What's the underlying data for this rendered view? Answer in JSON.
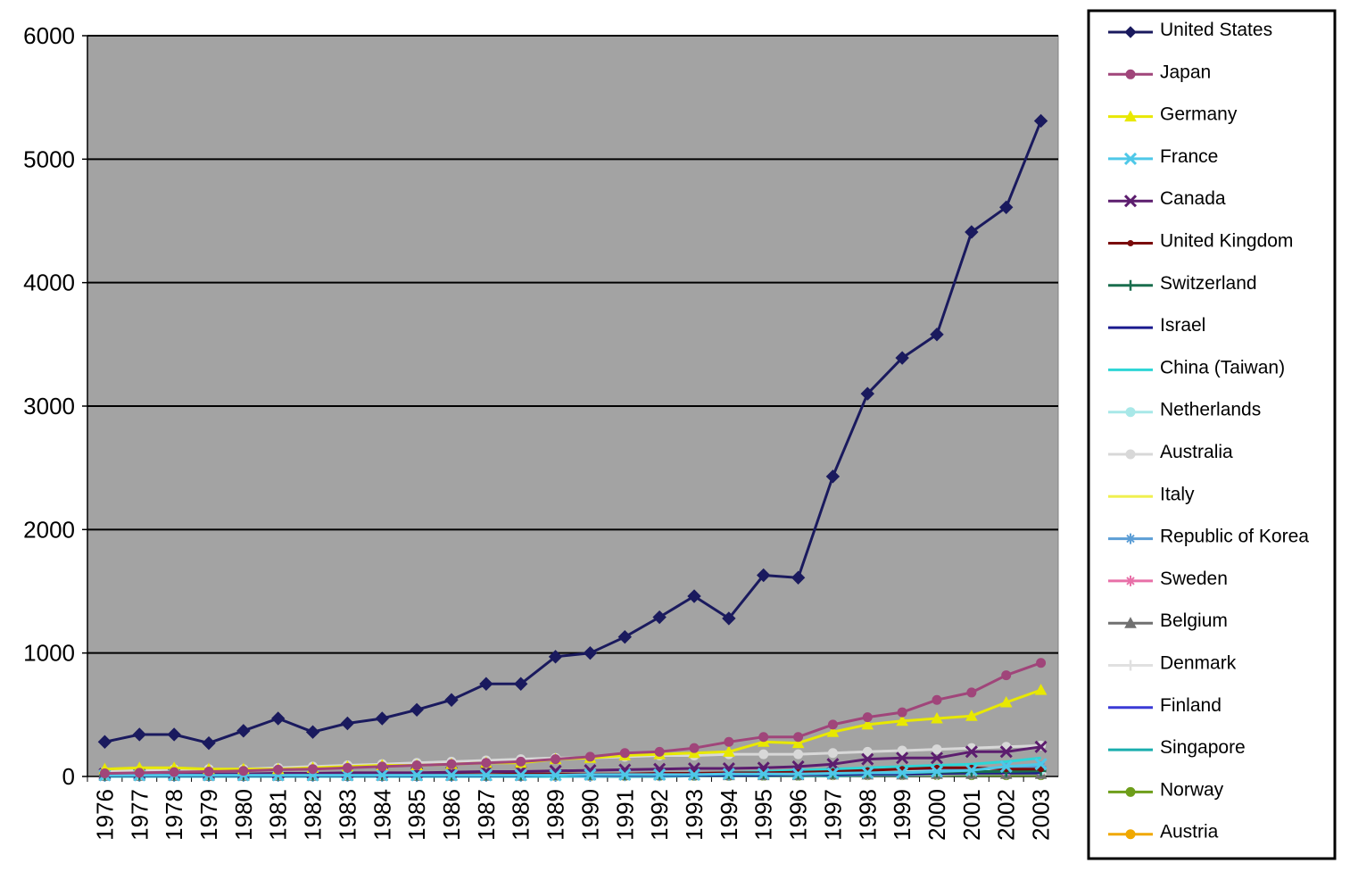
{
  "chart_data": {
    "type": "line",
    "title": "",
    "xlabel": "",
    "ylabel": "",
    "ylim": [
      0,
      6000
    ],
    "yticks": [
      "0",
      "1000",
      "2000",
      "3000",
      "4000",
      "5000",
      "6000"
    ],
    "grid": true,
    "legend_position": "right",
    "plot_background": "#a3a3a3",
    "categories": [
      "1976",
      "1977",
      "1978",
      "1979",
      "1980",
      "1981",
      "1982",
      "1983",
      "1984",
      "1985",
      "1986",
      "1987",
      "1988",
      "1989",
      "1990",
      "1991",
      "1992",
      "1993",
      "1994",
      "1995",
      "1996",
      "1997",
      "1998",
      "1999",
      "2000",
      "2001",
      "2002",
      "2003"
    ],
    "series": [
      {
        "name": "United States",
        "color": "#1a1a5e",
        "marker": "diamond",
        "values": [
          280,
          340,
          340,
          270,
          370,
          470,
          360,
          430,
          470,
          540,
          620,
          750,
          750,
          970,
          1000,
          1130,
          1290,
          1460,
          1280,
          1630,
          1610,
          2430,
          3100,
          3390,
          3580,
          4410,
          4610,
          5310
        ]
      },
      {
        "name": "Japan",
        "color": "#a0457a",
        "marker": "circle",
        "values": [
          25,
          30,
          35,
          40,
          45,
          55,
          60,
          70,
          80,
          90,
          100,
          110,
          120,
          140,
          160,
          190,
          200,
          230,
          280,
          320,
          320,
          420,
          480,
          520,
          620,
          680,
          820,
          920
        ]
      },
      {
        "name": "Germany",
        "color": "#e8e800",
        "marker": "triangle",
        "values": [
          60,
          70,
          70,
          60,
          60,
          60,
          70,
          80,
          90,
          90,
          100,
          110,
          110,
          140,
          150,
          170,
          180,
          190,
          200,
          280,
          270,
          360,
          420,
          450,
          470,
          490,
          600,
          700
        ]
      },
      {
        "name": "France",
        "color": "#4ec8e8",
        "marker": "x",
        "values": [
          10,
          10,
          10,
          10,
          10,
          10,
          10,
          10,
          10,
          10,
          10,
          10,
          10,
          10,
          15,
          15,
          15,
          15,
          20,
          20,
          20,
          25,
          30,
          30,
          40,
          50,
          80,
          100
        ]
      },
      {
        "name": "Canada",
        "color": "#5c1d6e",
        "marker": "x",
        "values": [
          20,
          20,
          20,
          20,
          20,
          25,
          25,
          30,
          30,
          30,
          35,
          40,
          40,
          45,
          50,
          55,
          60,
          65,
          65,
          70,
          80,
          100,
          140,
          150,
          150,
          200,
          200,
          240
        ]
      },
      {
        "name": "United Kingdom",
        "color": "#7a0a0a",
        "marker": "dot",
        "values": [
          10,
          10,
          10,
          10,
          10,
          10,
          10,
          10,
          10,
          15,
          15,
          15,
          20,
          20,
          20,
          20,
          25,
          25,
          30,
          30,
          35,
          40,
          50,
          60,
          70,
          70,
          60,
          60
        ]
      },
      {
        "name": "Switzerland",
        "color": "#1a6e4e",
        "marker": "plus",
        "values": [
          10,
          10,
          10,
          10,
          10,
          10,
          10,
          10,
          10,
          10,
          10,
          10,
          10,
          15,
          15,
          15,
          15,
          20,
          20,
          20,
          20,
          25,
          30,
          30,
          35,
          40,
          40,
          45
        ]
      },
      {
        "name": "Israel",
        "color": "#1a1a8e",
        "marker": "none",
        "values": [
          5,
          5,
          5,
          5,
          5,
          5,
          5,
          5,
          5,
          5,
          5,
          5,
          5,
          10,
          10,
          10,
          10,
          10,
          10,
          10,
          15,
          15,
          20,
          20,
          25,
          30,
          30,
          30
        ]
      },
      {
        "name": "China (Taiwan)",
        "color": "#2ed6d6",
        "marker": "none",
        "values": [
          0,
          0,
          0,
          0,
          0,
          0,
          0,
          0,
          0,
          0,
          0,
          0,
          0,
          0,
          5,
          10,
          15,
          20,
          30,
          40,
          50,
          60,
          70,
          80,
          90,
          100,
          120,
          150
        ]
      },
      {
        "name": "Netherlands",
        "color": "#a8e8e8",
        "marker": "circle",
        "values": [
          10,
          10,
          10,
          10,
          10,
          10,
          10,
          10,
          10,
          10,
          15,
          15,
          15,
          15,
          20,
          20,
          20,
          20,
          25,
          25,
          25,
          30,
          35,
          40,
          40,
          45,
          50,
          50
        ]
      },
      {
        "name": "Australia",
        "color": "#d8d8d8",
        "marker": "circle",
        "values": [
          40,
          50,
          60,
          60,
          60,
          70,
          80,
          90,
          100,
          110,
          120,
          130,
          140,
          150,
          150,
          160,
          170,
          170,
          180,
          180,
          180,
          190,
          200,
          210,
          220,
          230,
          240,
          250
        ]
      },
      {
        "name": "Italy",
        "color": "#f0f050",
        "marker": "none",
        "values": [
          10,
          10,
          10,
          10,
          10,
          10,
          10,
          10,
          15,
          15,
          15,
          15,
          15,
          20,
          20,
          20,
          20,
          20,
          25,
          25,
          25,
          30,
          30,
          30,
          35,
          35,
          40,
          40
        ]
      },
      {
        "name": "Republic of Korea",
        "color": "#5c9ed6",
        "marker": "star",
        "values": [
          0,
          0,
          0,
          0,
          0,
          0,
          0,
          0,
          0,
          0,
          0,
          0,
          0,
          0,
          0,
          5,
          5,
          10,
          10,
          15,
          20,
          30,
          35,
          40,
          50,
          60,
          70,
          80
        ]
      },
      {
        "name": "Sweden",
        "color": "#e870a8",
        "marker": "star",
        "values": [
          10,
          10,
          10,
          10,
          10,
          10,
          10,
          10,
          10,
          15,
          15,
          15,
          15,
          15,
          20,
          20,
          20,
          20,
          25,
          25,
          25,
          30,
          30,
          35,
          35,
          40,
          40,
          45
        ]
      },
      {
        "name": "Belgium",
        "color": "#707070",
        "marker": "triangle",
        "values": [
          5,
          5,
          5,
          5,
          5,
          5,
          5,
          5,
          5,
          5,
          5,
          5,
          5,
          10,
          10,
          10,
          10,
          10,
          10,
          10,
          10,
          15,
          15,
          15,
          20,
          20,
          20,
          20
        ]
      },
      {
        "name": "Denmark",
        "color": "#e0e0e0",
        "marker": "plus",
        "values": [
          5,
          5,
          5,
          5,
          5,
          5,
          5,
          5,
          5,
          5,
          5,
          5,
          5,
          5,
          10,
          10,
          10,
          10,
          10,
          10,
          10,
          15,
          15,
          15,
          15,
          20,
          20,
          20
        ]
      },
      {
        "name": "Finland",
        "color": "#3a3ad6",
        "marker": "none",
        "values": [
          5,
          5,
          5,
          5,
          5,
          5,
          5,
          5,
          5,
          5,
          5,
          5,
          5,
          10,
          10,
          10,
          10,
          10,
          10,
          10,
          15,
          15,
          20,
          20,
          25,
          25,
          25,
          25
        ]
      },
      {
        "name": "Singapore",
        "color": "#1aaeae",
        "marker": "none",
        "values": [
          0,
          0,
          0,
          0,
          0,
          0,
          0,
          0,
          0,
          0,
          0,
          0,
          0,
          0,
          0,
          0,
          0,
          5,
          5,
          5,
          5,
          5,
          10,
          10,
          15,
          15,
          20,
          20
        ]
      },
      {
        "name": "Norway",
        "color": "#6e9e1a",
        "marker": "circle",
        "values": [
          5,
          5,
          5,
          5,
          5,
          5,
          5,
          5,
          5,
          5,
          5,
          5,
          5,
          5,
          5,
          5,
          5,
          5,
          5,
          5,
          5,
          10,
          10,
          10,
          10,
          10,
          10,
          10
        ]
      },
      {
        "name": "Austria",
        "color": "#f0a800",
        "marker": "circle",
        "values": [
          5,
          5,
          5,
          5,
          5,
          5,
          5,
          5,
          5,
          5,
          5,
          5,
          5,
          5,
          5,
          5,
          10,
          10,
          10,
          10,
          10,
          10,
          10,
          15,
          15,
          15,
          15,
          15
        ]
      }
    ]
  }
}
